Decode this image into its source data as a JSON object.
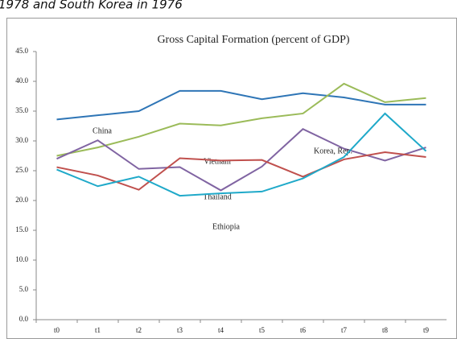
{
  "caption": "1978 and South Korea in 1976",
  "chart_data": {
    "type": "line",
    "title": "Gross Capital Formation (percent of GDP)",
    "categories": [
      "t0",
      "t1",
      "t2",
      "t3",
      "t4",
      "t5",
      "t6",
      "t7",
      "t8",
      "t9"
    ],
    "series": [
      {
        "name": "China",
        "color": "#2e75b6",
        "values": [
          33.6,
          34.3,
          35.0,
          38.4,
          38.4,
          37.0,
          38.0,
          37.3,
          36.1,
          36.1
        ]
      },
      {
        "name": "Vietnam",
        "color": "#9bbb59",
        "values": [
          27.5,
          28.9,
          30.7,
          32.9,
          32.6,
          33.8,
          34.6,
          39.6,
          36.5,
          37.2
        ]
      },
      {
        "name": "Korea, Rep.",
        "color": "#8064a2",
        "values": [
          27.0,
          30.1,
          25.3,
          25.6,
          21.7,
          25.7,
          32.0,
          28.7,
          26.7,
          28.9
        ]
      },
      {
        "name": "Thailand",
        "color": "#c0504d",
        "values": [
          25.6,
          24.2,
          21.8,
          27.1,
          26.7,
          26.8,
          24.0,
          26.9,
          28.1,
          27.3
        ]
      },
      {
        "name": "Ethiopia",
        "color": "#1fa9c9",
        "values": [
          25.2,
          22.4,
          24.0,
          20.8,
          21.2,
          21.5,
          23.7,
          27.3,
          34.6,
          28.3
        ]
      }
    ],
    "ylim": [
      0,
      45
    ],
    "yticks": [
      {
        "value": 0,
        "label": "0.0"
      },
      {
        "value": 5,
        "label": "5.0"
      },
      {
        "value": 10,
        "label": "10.0"
      },
      {
        "value": 15,
        "label": "15.0"
      },
      {
        "value": 20,
        "label": "20.0"
      },
      {
        "value": 25,
        "label": "25.0"
      },
      {
        "value": 30,
        "label": "30.0"
      },
      {
        "value": 35,
        "label": "35.0"
      },
      {
        "value": 40,
        "label": "40.0"
      },
      {
        "value": 45,
        "label": "45.0"
      }
    ],
    "grid": false
  }
}
